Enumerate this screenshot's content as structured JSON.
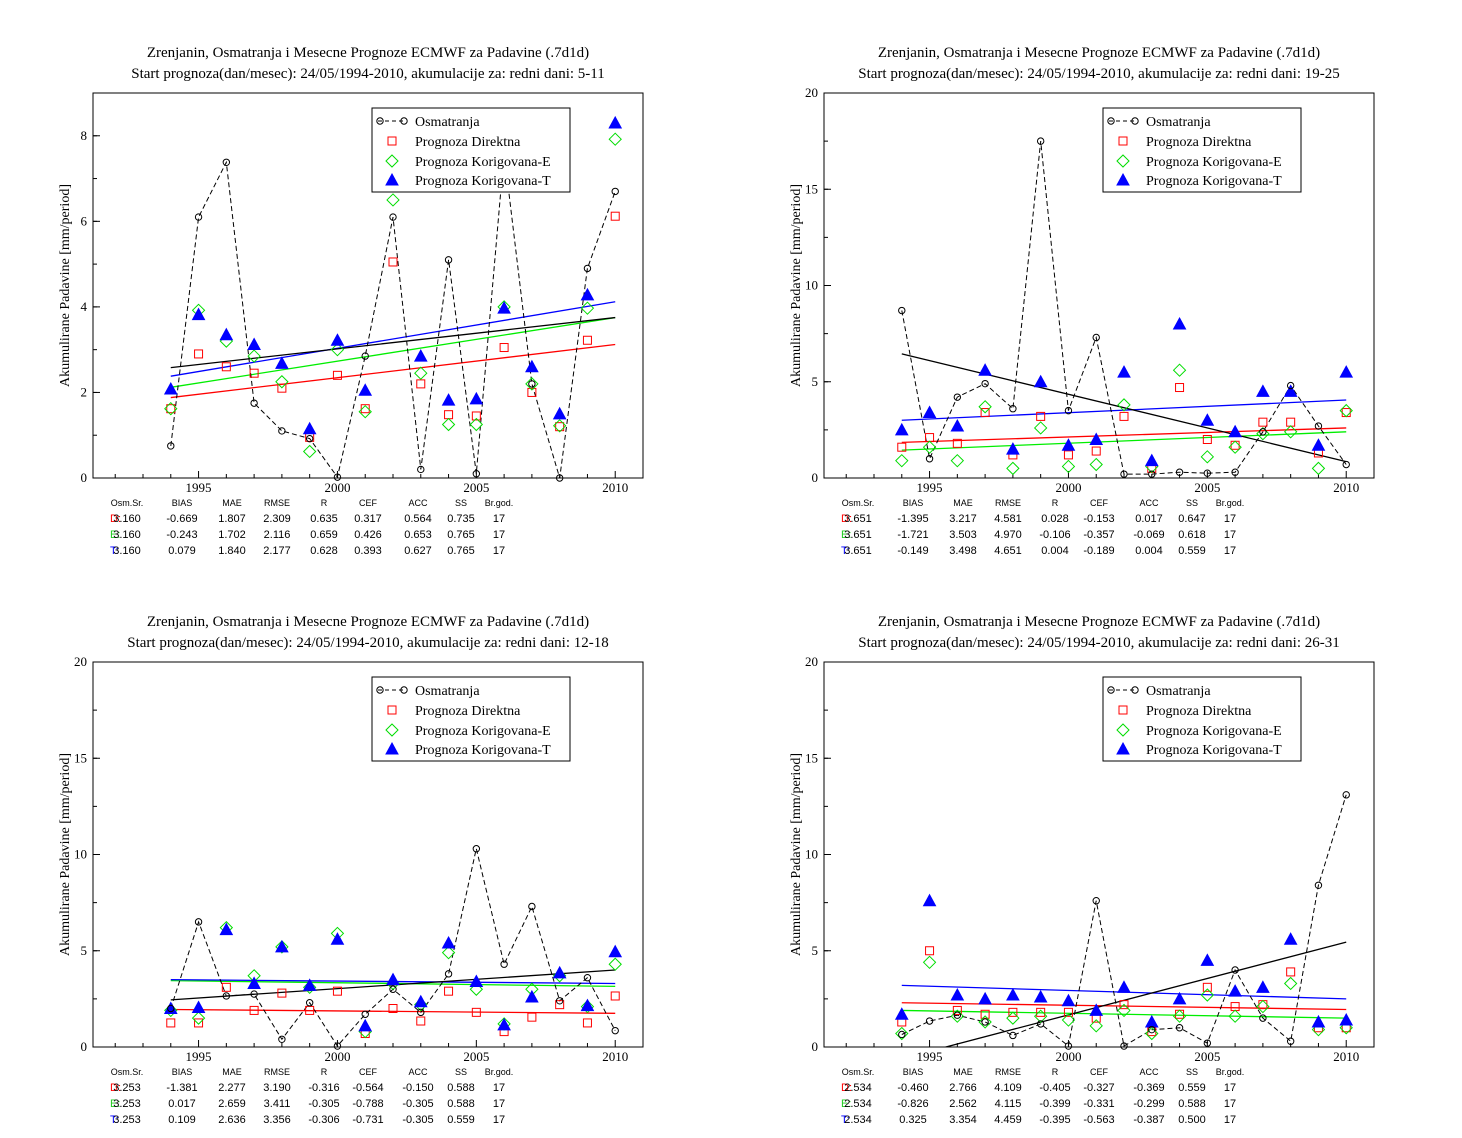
{
  "colors": {
    "obs": "#000000",
    "direct": "#ff0000",
    "korE": "#00dd00",
    "korT": "#0000ff",
    "trend_obs": "#000000",
    "trend_direct": "#ff0000",
    "trend_korE": "#00ee00",
    "trend_korT": "#0000ff"
  },
  "stats_header": [
    "Osm.Sr.",
    "BIAS",
    "MAE",
    "RMSE",
    "R",
    "CEF",
    "ACC",
    "SS",
    "Br.god."
  ],
  "chart_data": [
    {
      "type": "scatter",
      "title_line1": "Zrenjanin, Osmatranja i Mesecne Prognoze ECMWF za Padavine (.7d1d)",
      "title_line2": "Start prognoza(dan/mesec): 24/05/1994-2010, akumulacije za: redni dani: 5-11",
      "ylabel": "Akumulirane Padavine [mm/period]",
      "xlim": [
        1991.2,
        2011.0
      ],
      "ylim": [
        0,
        9
      ],
      "xticks": [
        1995,
        2000,
        2005,
        2010
      ],
      "yticks": [
        0,
        2,
        4,
        6,
        8
      ],
      "x": [
        1994,
        1995,
        1996,
        1997,
        1998,
        1999,
        2000,
        2001,
        2002,
        2003,
        2004,
        2005,
        2006,
        2007,
        2008,
        2009,
        2010
      ],
      "series": [
        {
          "name": "Osmatranja",
          "values": [
            0.75,
            6.1,
            7.38,
            1.75,
            1.1,
            0.92,
            0.02,
            2.85,
            6.1,
            0.2,
            5.1,
            0.1,
            7.6,
            2.2,
            0.0,
            4.9,
            6.7
          ]
        },
        {
          "name": "Prognoza Direktna",
          "values": [
            1.62,
            2.9,
            2.6,
            2.45,
            2.1,
            0.95,
            2.4,
            1.62,
            5.05,
            2.2,
            1.48,
            1.45,
            3.05,
            2.0,
            1.2,
            3.22,
            6.12
          ]
        },
        {
          "name": "Prognoza Korigovana-E",
          "values": [
            1.62,
            3.92,
            3.2,
            2.85,
            2.25,
            0.62,
            3.0,
            1.55,
            6.5,
            2.45,
            1.25,
            1.25,
            4.0,
            2.2,
            1.22,
            3.97,
            7.92
          ]
        },
        {
          "name": "Prognoza Korigovana-T",
          "values": [
            2.08,
            3.82,
            3.35,
            3.12,
            2.68,
            1.15,
            3.22,
            2.05,
            6.82,
            2.85,
            1.82,
            1.85,
            3.97,
            2.6,
            1.5,
            4.28,
            8.3
          ]
        }
      ],
      "trends": {
        "obs": [
          2.58,
          3.75
        ],
        "direct": [
          1.88,
          3.12
        ],
        "korE": [
          2.12,
          3.75
        ],
        "korT": [
          2.38,
          4.12
        ]
      },
      "legend": [
        "Osmatranja",
        "Prognoza Direktna",
        "Prognoza Korigovana-E",
        "Prognoza Korigovana-T"
      ],
      "legend_position": "top-right",
      "stats": [
        {
          "label": "D:",
          "values": [
            "3.160",
            "-0.669",
            "1.807",
            "2.309",
            "0.635",
            "0.317",
            "0.564",
            "0.735",
            "17"
          ]
        },
        {
          "label": "E:",
          "values": [
            "3.160",
            "-0.243",
            "1.702",
            "2.116",
            "0.659",
            "0.426",
            "0.653",
            "0.765",
            "17"
          ]
        },
        {
          "label": "T:",
          "values": [
            "3.160",
            "0.079",
            "1.840",
            "2.177",
            "0.628",
            "0.393",
            "0.627",
            "0.765",
            "17"
          ]
        }
      ]
    },
    {
      "type": "scatter",
      "title_line1": "Zrenjanin, Osmatranja i Mesecne Prognoze ECMWF za Padavine (.7d1d)",
      "title_line2": "Start prognoza(dan/mesec): 24/05/1994-2010, akumulacije za: redni dani: 19-25",
      "ylabel": "Akumulirane Padavine [mm/period]",
      "xlim": [
        1991.2,
        2011.0
      ],
      "ylim": [
        0,
        20
      ],
      "xticks": [
        1995,
        2000,
        2005,
        2010
      ],
      "yticks": [
        0,
        5,
        10,
        15,
        20
      ],
      "x": [
        1994,
        1995,
        1996,
        1997,
        1998,
        1999,
        2000,
        2001,
        2002,
        2003,
        2004,
        2005,
        2006,
        2007,
        2008,
        2009,
        2010
      ],
      "series": [
        {
          "name": "Osmatranja",
          "values": [
            8.7,
            1.0,
            4.2,
            4.9,
            3.6,
            17.5,
            3.5,
            7.3,
            0.2,
            0.2,
            0.3,
            0.25,
            0.3,
            2.4,
            4.8,
            2.7,
            0.7
          ]
        },
        {
          "name": "Prognoza Direktna",
          "values": [
            1.6,
            2.1,
            1.8,
            3.4,
            1.2,
            3.2,
            1.2,
            1.4,
            3.2,
            0.5,
            4.7,
            2.0,
            1.7,
            2.9,
            2.9,
            1.3,
            3.4
          ]
        },
        {
          "name": "Prognoza Korigovana-E",
          "values": [
            0.9,
            1.6,
            0.9,
            3.7,
            0.5,
            2.6,
            0.6,
            0.7,
            3.8,
            0.6,
            5.6,
            1.1,
            1.6,
            2.3,
            2.4,
            0.5,
            3.5
          ]
        },
        {
          "name": "Prognoza Korigovana-T",
          "values": [
            2.5,
            3.4,
            2.7,
            5.6,
            1.5,
            5.0,
            1.7,
            2.0,
            5.5,
            0.9,
            8.0,
            3.0,
            2.4,
            4.5,
            4.5,
            1.7,
            5.5
          ]
        }
      ],
      "trends": {
        "obs": [
          6.45,
          0.85
        ],
        "direct": [
          1.85,
          2.6
        ],
        "korE": [
          1.45,
          2.4
        ],
        "korT": [
          3.0,
          4.05
        ]
      },
      "legend": [
        "Osmatranja",
        "Prognoza Direktna",
        "Prognoza Korigovana-E",
        "Prognoza Korigovana-T"
      ],
      "legend_position": "top-right",
      "stats": [
        {
          "label": "D:",
          "values": [
            "3.651",
            "-1.395",
            "3.217",
            "4.581",
            "0.028",
            "-0.153",
            "0.017",
            "0.647",
            "17"
          ]
        },
        {
          "label": "E:",
          "values": [
            "3.651",
            "-1.721",
            "3.503",
            "4.970",
            "-0.106",
            "-0.357",
            "-0.069",
            "0.618",
            "17"
          ]
        },
        {
          "label": "T:",
          "values": [
            "3.651",
            "-0.149",
            "3.498",
            "4.651",
            "0.004",
            "-0.189",
            "0.004",
            "0.559",
            "17"
          ]
        }
      ]
    },
    {
      "type": "scatter",
      "title_line1": "Zrenjanin, Osmatranja i Mesecne Prognoze ECMWF za Padavine (.7d1d)",
      "title_line2": "Start prognoza(dan/mesec): 24/05/1994-2010, akumulacije za: redni dani: 12-18",
      "ylabel": "Akumulirane Padavine [mm/period]",
      "xlim": [
        1991.2,
        2011.0
      ],
      "ylim": [
        0,
        20
      ],
      "xticks": [
        1995,
        2000,
        2005,
        2010
      ],
      "yticks": [
        0,
        5,
        10,
        15,
        20
      ],
      "x": [
        1994,
        1995,
        1996,
        1997,
        1998,
        1999,
        2000,
        2001,
        2002,
        2003,
        2004,
        2005,
        2006,
        2007,
        2008,
        2009,
        2010
      ],
      "series": [
        {
          "name": "Osmatranja",
          "values": [
            2.0,
            6.5,
            2.65,
            2.75,
            0.4,
            2.3,
            0.05,
            1.7,
            3.0,
            1.8,
            3.8,
            10.3,
            4.3,
            7.3,
            2.4,
            3.6,
            0.85
          ]
        },
        {
          "name": "Prognoza Direktna",
          "values": [
            1.25,
            1.25,
            3.1,
            1.9,
            2.8,
            1.9,
            2.9,
            0.7,
            2.0,
            1.35,
            2.9,
            1.8,
            0.8,
            1.55,
            2.2,
            1.25,
            2.65
          ]
        },
        {
          "name": "Prognoza Korigovana-E",
          "values": [
            1.9,
            1.5,
            6.2,
            3.7,
            5.2,
            3.1,
            5.9,
            0.8,
            3.3,
            2.2,
            4.9,
            3.0,
            1.2,
            3.0,
            3.7,
            2.1,
            4.3
          ]
        },
        {
          "name": "Prognoza Korigovana-T",
          "values": [
            2.0,
            2.05,
            6.1,
            3.3,
            5.2,
            3.2,
            5.6,
            1.1,
            3.5,
            2.35,
            5.4,
            3.4,
            1.15,
            2.6,
            3.85,
            2.15,
            4.95
          ]
        }
      ],
      "trends": {
        "obs": [
          2.45,
          4.0
        ],
        "direct": [
          1.95,
          1.75
        ],
        "korE": [
          3.45,
          3.15
        ],
        "korT": [
          3.5,
          3.3
        ]
      },
      "legend": [
        "Osmatranja",
        "Prognoza Direktna",
        "Prognoza Korigovana-E",
        "Prognoza Korigovana-T"
      ],
      "legend_position": "top-right",
      "stats": [
        {
          "label": "D:",
          "values": [
            "3.253",
            "-1.381",
            "2.277",
            "3.190",
            "-0.316",
            "-0.564",
            "-0.150",
            "0.588",
            "17"
          ]
        },
        {
          "label": "E:",
          "values": [
            "3.253",
            "0.017",
            "2.659",
            "3.411",
            "-0.305",
            "-0.788",
            "-0.305",
            "0.588",
            "17"
          ]
        },
        {
          "label": "T:",
          "values": [
            "3.253",
            "0.109",
            "2.636",
            "3.356",
            "-0.306",
            "-0.731",
            "-0.305",
            "0.559",
            "17"
          ]
        }
      ]
    },
    {
      "type": "scatter",
      "title_line1": "Zrenjanin, Osmatranja i Mesecne Prognoze ECMWF za Padavine (.7d1d)",
      "title_line2": "Start prognoza(dan/mesec): 24/05/1994-2010, akumulacije za: redni dani: 26-31",
      "ylabel": "Akumulirane Padavine [mm/period]",
      "xlim": [
        1991.2,
        2011.0
      ],
      "ylim": [
        0,
        20
      ],
      "xticks": [
        1995,
        2000,
        2005,
        2010
      ],
      "yticks": [
        0,
        5,
        10,
        15,
        20
      ],
      "x": [
        1994,
        1995,
        1996,
        1997,
        1998,
        1999,
        2000,
        2001,
        2002,
        2003,
        2004,
        2005,
        2006,
        2007,
        2008,
        2009,
        2010
      ],
      "series": [
        {
          "name": "Osmatranja",
          "values": [
            0.65,
            1.35,
            1.65,
            1.3,
            0.6,
            1.2,
            0.05,
            7.6,
            0.05,
            0.9,
            1.0,
            0.2,
            4.0,
            1.5,
            0.3,
            8.4,
            13.1
          ]
        },
        {
          "name": "Prognoza Direktna",
          "values": [
            1.3,
            5.0,
            1.9,
            1.7,
            1.8,
            1.8,
            1.8,
            1.5,
            2.2,
            0.8,
            1.7,
            3.1,
            2.1,
            2.2,
            3.9,
            1.0,
            1.0
          ]
        },
        {
          "name": "Prognoza Korigovana-E",
          "values": [
            0.7,
            4.4,
            1.6,
            1.3,
            1.5,
            1.6,
            1.4,
            1.1,
            1.9,
            0.7,
            1.6,
            2.7,
            1.6,
            2.1,
            3.3,
            0.9,
            1.0
          ]
        },
        {
          "name": "Prognoza Korigovana-T",
          "values": [
            1.7,
            7.6,
            2.7,
            2.5,
            2.7,
            2.6,
            2.4,
            1.9,
            3.1,
            1.3,
            2.5,
            4.5,
            2.9,
            3.1,
            5.6,
            1.3,
            1.4
          ]
        }
      ],
      "trends": {
        "obs": [
          -0.6,
          5.45
        ],
        "direct": [
          2.3,
          1.95
        ],
        "korE": [
          1.9,
          1.5
        ],
        "korT": [
          3.2,
          2.5
        ]
      },
      "legend": [
        "Osmatranja",
        "Prognoza Direktna",
        "Prognoza Korigovana-E",
        "Prognoza Korigovana-T"
      ],
      "legend_position": "top-right",
      "stats": [
        {
          "label": "D:",
          "values": [
            "2.534",
            "-0.460",
            "2.766",
            "4.109",
            "-0.405",
            "-0.327",
            "-0.369",
            "0.559",
            "17"
          ]
        },
        {
          "label": "E:",
          "values": [
            "2.534",
            "-0.826",
            "2.562",
            "4.115",
            "-0.399",
            "-0.331",
            "-0.299",
            "0.588",
            "17"
          ]
        },
        {
          "label": "T:",
          "values": [
            "2.534",
            "0.325",
            "3.354",
            "4.459",
            "-0.395",
            "-0.563",
            "-0.387",
            "0.500",
            "17"
          ]
        }
      ]
    }
  ]
}
